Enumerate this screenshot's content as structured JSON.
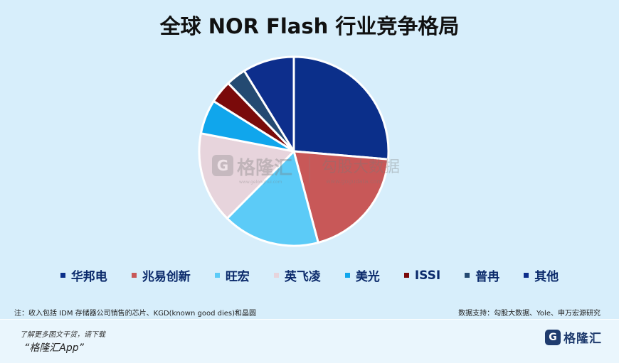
{
  "chart_data": {
    "type": "pie",
    "title": "全球 NOR Flash 行业竞争格局",
    "series": [
      {
        "name": "华邦电",
        "value": 27,
        "color": "#0b2f8a"
      },
      {
        "name": "兆易创新",
        "value": 20,
        "color": "#c85858"
      },
      {
        "name": "旺宏",
        "value": 17,
        "color": "#5ccbf7"
      },
      {
        "name": "英飞凌",
        "value": 16,
        "color": "#e7d4dc"
      },
      {
        "name": "美光",
        "value": 6,
        "color": "#10a6ec"
      },
      {
        "name": "ISSI",
        "value": 4,
        "color": "#7a0a0a"
      },
      {
        "name": "普冉",
        "value": 3.5,
        "color": "#244a72"
      },
      {
        "name": "其他",
        "value": 9,
        "color": "#0d2e8c"
      }
    ],
    "legend_position": "bottom"
  },
  "watermark": {
    "brand": "格隆汇",
    "brand_url": "www.gelonghui.com",
    "partner": "勾股大数据",
    "partner_url": "www.gogudata.com"
  },
  "note": "注：收入包括 IDM 存储器公司销售的芯片、KGD(known good dies)和晶圆",
  "source": "数据支持：勾股大数据、Yole、申万宏源研究",
  "footer": {
    "line1": "了解更多图文干货，请下载",
    "line2": "“格隆汇App”",
    "logo_text": "格隆汇",
    "logo_mark": "G"
  }
}
